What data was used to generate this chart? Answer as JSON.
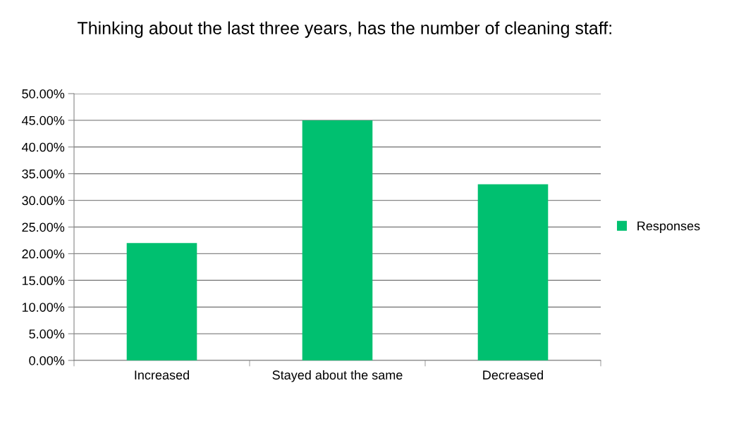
{
  "chart_data": {
    "type": "bar",
    "title": "Thinking about the last three years, has the number of cleaning staff:",
    "categories": [
      "Increased",
      "Stayed about the same",
      "Decreased"
    ],
    "series": [
      {
        "name": "Responses",
        "color": "#00c070",
        "values": [
          22,
          45,
          33
        ]
      }
    ],
    "ylim": [
      0,
      50
    ],
    "yticks": [
      {
        "value": 0,
        "label": "0.00%"
      },
      {
        "value": 5,
        "label": "5.00%"
      },
      {
        "value": 10,
        "label": "10.00%"
      },
      {
        "value": 15,
        "label": "15.00%"
      },
      {
        "value": 20,
        "label": "20.00%"
      },
      {
        "value": 25,
        "label": "25.00%"
      },
      {
        "value": 30,
        "label": "30.00%"
      },
      {
        "value": 35,
        "label": "35.00%"
      },
      {
        "value": 40,
        "label": "40.00%"
      },
      {
        "value": 45,
        "label": "45.00%"
      },
      {
        "value": 50,
        "label": "50.00%"
      }
    ],
    "grid": "y",
    "legend": "right"
  }
}
